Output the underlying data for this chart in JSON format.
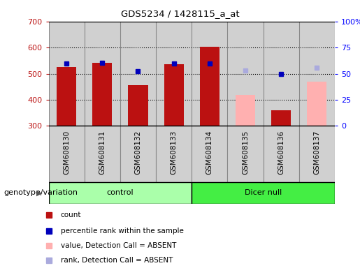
{
  "title": "GDS5234 / 1428115_a_at",
  "samples": [
    "GSM608130",
    "GSM608131",
    "GSM608132",
    "GSM608133",
    "GSM608134",
    "GSM608135",
    "GSM608136",
    "GSM608137"
  ],
  "count_values": [
    525,
    543,
    455,
    535,
    603,
    null,
    360,
    null
  ],
  "count_absent": [
    null,
    null,
    null,
    null,
    null,
    418,
    null,
    470
  ],
  "rank_values": [
    540,
    543,
    510,
    540,
    540,
    null,
    500,
    null
  ],
  "rank_absent": [
    null,
    null,
    null,
    null,
    null,
    513,
    null,
    523
  ],
  "ylim": [
    300,
    700
  ],
  "y2lim": [
    0,
    100
  ],
  "yticks": [
    300,
    400,
    500,
    600,
    700
  ],
  "y2ticks": [
    0,
    25,
    50,
    75,
    100
  ],
  "count_color": "#bb1111",
  "rank_color": "#0000bb",
  "count_absent_color": "#ffb0b0",
  "rank_absent_color": "#aaaadd",
  "control_color": "#aaffaa",
  "dicer_color": "#44ee44",
  "col_bg_color": "#d0d0d0",
  "col_border_color": "#888888",
  "group_label": "genotype/variation",
  "n_control": 4,
  "n_dicer": 4,
  "legend_items": [
    {
      "label": "count",
      "color": "#bb1111"
    },
    {
      "label": "percentile rank within the sample",
      "color": "#0000bb"
    },
    {
      "label": "value, Detection Call = ABSENT",
      "color": "#ffb0b0"
    },
    {
      "label": "rank, Detection Call = ABSENT",
      "color": "#aaaadd"
    }
  ]
}
